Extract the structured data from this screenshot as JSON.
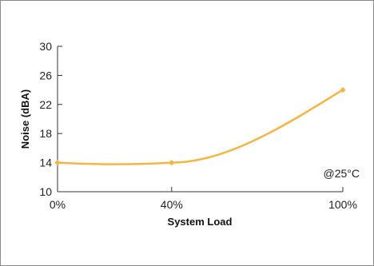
{
  "chart_data": {
    "type": "line",
    "xlabel": "System Load",
    "ylabel": "Noise (dBA)",
    "annotation": "@25°C",
    "x_ticks": [
      {
        "value": 0,
        "label": "0%"
      },
      {
        "value": 40,
        "label": "40%"
      },
      {
        "value": 100,
        "label": "100%"
      }
    ],
    "y_ticks": [
      {
        "value": 10,
        "label": "10"
      },
      {
        "value": 14,
        "label": "14"
      },
      {
        "value": 18,
        "label": "18"
      },
      {
        "value": 22,
        "label": "22"
      },
      {
        "value": 26,
        "label": "26"
      },
      {
        "value": 30,
        "label": "30"
      }
    ],
    "xlim": [
      0,
      100
    ],
    "ylim": [
      10,
      30
    ],
    "grid": false,
    "series": [
      {
        "color": "#f4b545",
        "points": [
          {
            "x": 0,
            "y": 14
          },
          {
            "x": 40,
            "y": 14
          },
          {
            "x": 100,
            "y": 24
          }
        ]
      }
    ]
  }
}
